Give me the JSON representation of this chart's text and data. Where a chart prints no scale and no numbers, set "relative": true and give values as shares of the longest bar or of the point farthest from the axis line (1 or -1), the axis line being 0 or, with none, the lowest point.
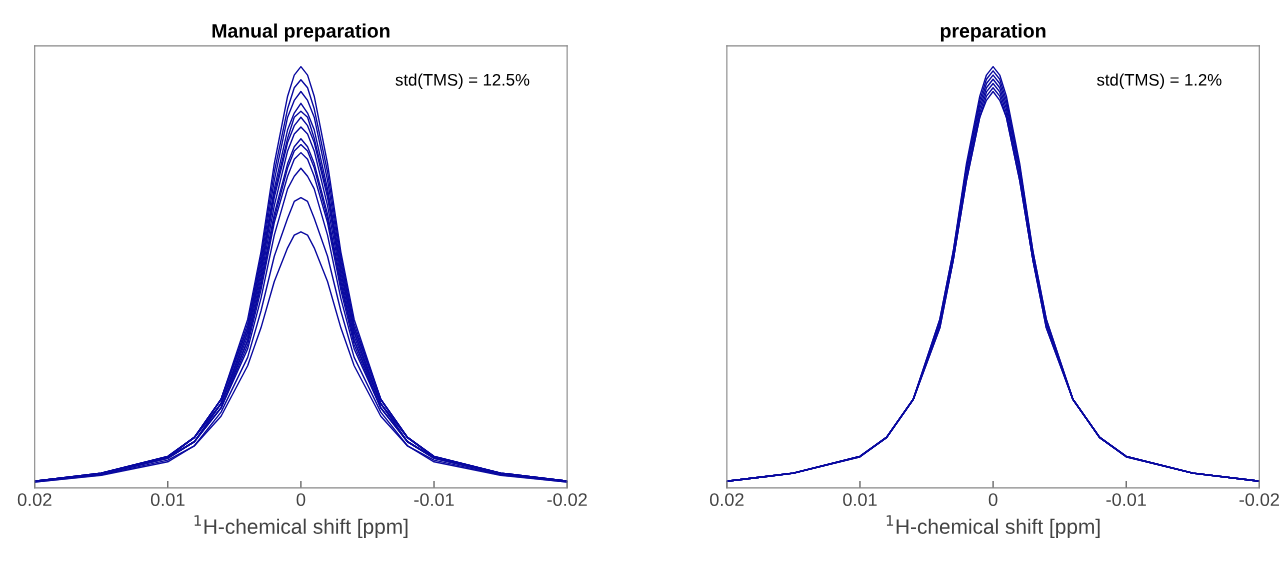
{
  "chart_data": [
    {
      "type": "line",
      "title": "Manual preparation",
      "xlabel": "$^{1}$H-chemical shift [ppm]",
      "annotations": [
        "std(TMS) = 12.5%"
      ],
      "relative": true,
      "tick_labels": "x",
      "grid": false,
      "marker": "none",
      "line_style": "solid",
      "x": [
        0.02,
        0.015,
        0.01,
        0.008,
        0.006,
        0.004,
        0.003,
        0.002,
        0.001,
        0.0005,
        0,
        -0.0005,
        -0.001,
        -0.002,
        -0.003,
        -0.004,
        -0.006,
        -0.008,
        -0.01,
        -0.015,
        -0.02
      ],
      "xlim": [
        0.02,
        -0.02
      ],
      "xticks": [
        0.02,
        0.01,
        0,
        -0.01,
        -0.02
      ],
      "series": [
        {
          "color": "#0a0aa0",
          "values": [
            0.016,
            0.035,
            0.075,
            0.12,
            0.21,
            0.4,
            0.56,
            0.77,
            0.93,
            0.98,
            1,
            0.98,
            0.93,
            0.77,
            0.56,
            0.4,
            0.21,
            0.12,
            0.075,
            0.035,
            0.016
          ]
        },
        {
          "color": "#0a0aa0",
          "values": [
            0.016,
            0.035,
            0.075,
            0.12,
            0.21,
            0.39,
            0.55,
            0.75,
            0.9,
            0.95,
            0.969,
            0.95,
            0.9,
            0.75,
            0.55,
            0.39,
            0.21,
            0.12,
            0.075,
            0.035,
            0.016
          ]
        },
        {
          "color": "#0a0aa0",
          "values": [
            0.016,
            0.035,
            0.074,
            0.12,
            0.21,
            0.38,
            0.54,
            0.73,
            0.88,
            0.92,
            0.941,
            0.92,
            0.88,
            0.73,
            0.54,
            0.38,
            0.21,
            0.12,
            0.074,
            0.035,
            0.016
          ]
        },
        {
          "color": "#0a0aa0",
          "values": [
            0.016,
            0.035,
            0.074,
            0.12,
            0.21,
            0.38,
            0.53,
            0.71,
            0.85,
            0.89,
            0.913,
            0.89,
            0.85,
            0.71,
            0.53,
            0.38,
            0.21,
            0.12,
            0.074,
            0.035,
            0.016
          ]
        },
        {
          "color": "#0a0aa0",
          "values": [
            0.016,
            0.034,
            0.073,
            0.12,
            0.2,
            0.37,
            0.52,
            0.7,
            0.83,
            0.88,
            0.894,
            0.88,
            0.83,
            0.7,
            0.52,
            0.37,
            0.2,
            0.12,
            0.073,
            0.034,
            0.016
          ]
        },
        {
          "color": "#0a0aa0",
          "values": [
            0.016,
            0.034,
            0.073,
            0.12,
            0.2,
            0.37,
            0.51,
            0.69,
            0.82,
            0.86,
            0.88,
            0.86,
            0.82,
            0.69,
            0.51,
            0.37,
            0.2,
            0.12,
            0.073,
            0.034,
            0.016
          ]
        },
        {
          "color": "#0a0aa0",
          "values": [
            0.015,
            0.034,
            0.072,
            0.11,
            0.2,
            0.36,
            0.5,
            0.67,
            0.8,
            0.84,
            0.857,
            0.84,
            0.8,
            0.67,
            0.5,
            0.36,
            0.2,
            0.11,
            0.072,
            0.034,
            0.015
          ]
        },
        {
          "color": "#0a0aa0",
          "values": [
            0.015,
            0.034,
            0.072,
            0.11,
            0.2,
            0.35,
            0.49,
            0.65,
            0.77,
            0.81,
            0.829,
            0.81,
            0.77,
            0.65,
            0.49,
            0.35,
            0.2,
            0.11,
            0.072,
            0.034,
            0.015
          ]
        },
        {
          "color": "#0a0aa0",
          "values": [
            0.015,
            0.033,
            0.071,
            0.11,
            0.19,
            0.35,
            0.48,
            0.64,
            0.76,
            0.8,
            0.815,
            0.8,
            0.76,
            0.64,
            0.48,
            0.35,
            0.19,
            0.11,
            0.071,
            0.033,
            0.015
          ]
        },
        {
          "color": "#0a0aa0",
          "values": [
            0.015,
            0.033,
            0.071,
            0.11,
            0.19,
            0.34,
            0.47,
            0.63,
            0.74,
            0.78,
            0.796,
            0.78,
            0.74,
            0.63,
            0.47,
            0.34,
            0.19,
            0.11,
            0.071,
            0.033,
            0.015
          ]
        },
        {
          "color": "#0a0aa0",
          "values": [
            0.015,
            0.033,
            0.07,
            0.11,
            0.19,
            0.33,
            0.45,
            0.6,
            0.71,
            0.74,
            0.759,
            0.74,
            0.71,
            0.6,
            0.45,
            0.33,
            0.19,
            0.11,
            0.07,
            0.033,
            0.015
          ]
        },
        {
          "color": "#0a0aa0",
          "values": [
            0.014,
            0.031,
            0.066,
            0.1,
            0.18,
            0.31,
            0.42,
            0.55,
            0.64,
            0.68,
            0.689,
            0.68,
            0.64,
            0.55,
            0.42,
            0.31,
            0.18,
            0.1,
            0.066,
            0.031,
            0.014
          ]
        },
        {
          "color": "#0a0aa0",
          "values": [
            0.014,
            0.03,
            0.062,
            0.1,
            0.17,
            0.29,
            0.38,
            0.49,
            0.57,
            0.6,
            0.608,
            0.6,
            0.57,
            0.49,
            0.38,
            0.29,
            0.17,
            0.1,
            0.062,
            0.03,
            0.014
          ]
        }
      ]
    },
    {
      "type": "line",
      "title": "preparation",
      "xlabel": "$^{1}$H-chemical shift [ppm]",
      "annotations": [
        "std(TMS) = 1.2%"
      ],
      "relative": true,
      "tick_labels": "x",
      "grid": false,
      "marker": "none",
      "line_style": "solid",
      "x": [
        0.02,
        0.015,
        0.01,
        0.008,
        0.006,
        0.004,
        0.003,
        0.002,
        0.001,
        0.0005,
        0,
        -0.0005,
        -0.001,
        -0.002,
        -0.003,
        -0.004,
        -0.006,
        -0.008,
        -0.01,
        -0.015,
        -0.02
      ],
      "xlim": [
        0.02,
        -0.02
      ],
      "xticks": [
        0.02,
        0.01,
        0,
        -0.01,
        -0.02
      ],
      "series": [
        {
          "color": "#0a0aa0",
          "values": [
            0.016,
            0.035,
            0.075,
            0.12,
            0.21,
            0.4,
            0.56,
            0.77,
            0.93,
            0.98,
            1,
            0.98,
            0.93,
            0.77,
            0.56,
            0.4,
            0.21,
            0.12,
            0.075,
            0.035,
            0.016
          ]
        },
        {
          "color": "#0a0aa0",
          "values": [
            0.016,
            0.035,
            0.075,
            0.12,
            0.21,
            0.4,
            0.56,
            0.76,
            0.92,
            0.97,
            0.99,
            0.97,
            0.92,
            0.76,
            0.56,
            0.4,
            0.21,
            0.12,
            0.075,
            0.035,
            0.016
          ]
        },
        {
          "color": "#0a0aa0",
          "values": [
            0.016,
            0.035,
            0.075,
            0.12,
            0.21,
            0.39,
            0.55,
            0.76,
            0.91,
            0.96,
            0.98,
            0.96,
            0.91,
            0.76,
            0.55,
            0.39,
            0.21,
            0.12,
            0.075,
            0.035,
            0.016
          ]
        },
        {
          "color": "#0a0aa0",
          "values": [
            0.016,
            0.035,
            0.075,
            0.12,
            0.21,
            0.39,
            0.55,
            0.75,
            0.9,
            0.95,
            0.97,
            0.95,
            0.9,
            0.75,
            0.55,
            0.39,
            0.21,
            0.12,
            0.075,
            0.035,
            0.016
          ]
        },
        {
          "color": "#0a0aa0",
          "values": [
            0.016,
            0.035,
            0.074,
            0.12,
            0.21,
            0.39,
            0.54,
            0.74,
            0.89,
            0.94,
            0.96,
            0.94,
            0.89,
            0.74,
            0.54,
            0.39,
            0.21,
            0.12,
            0.074,
            0.035,
            0.016
          ]
        },
        {
          "color": "#0a0aa0",
          "values": [
            0.016,
            0.035,
            0.074,
            0.12,
            0.21,
            0.38,
            0.54,
            0.73,
            0.88,
            0.93,
            0.95,
            0.93,
            0.88,
            0.73,
            0.54,
            0.38,
            0.21,
            0.12,
            0.074,
            0.035,
            0.016
          ]
        },
        {
          "color": "#0a0aa0",
          "values": [
            0.016,
            0.035,
            0.074,
            0.12,
            0.21,
            0.38,
            0.54,
            0.73,
            0.88,
            0.92,
            0.941,
            0.92,
            0.88,
            0.73,
            0.54,
            0.38,
            0.21,
            0.12,
            0.074,
            0.035,
            0.016
          ]
        }
      ]
    }
  ]
}
